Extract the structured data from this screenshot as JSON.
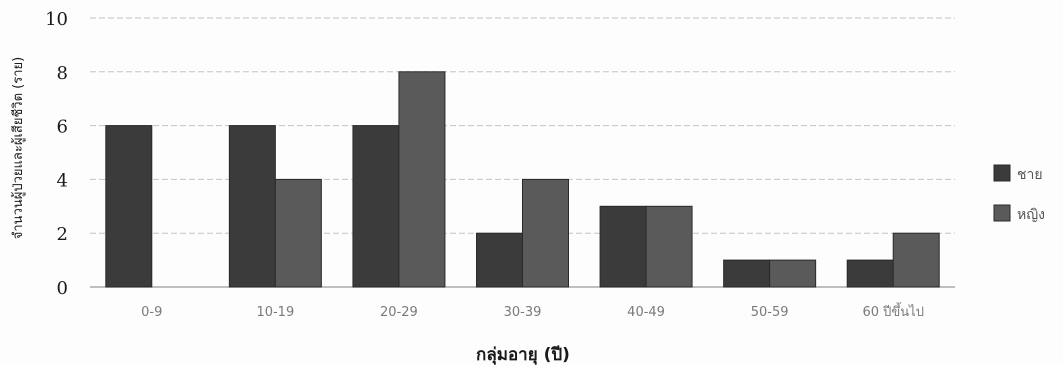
{
  "chart_data": {
    "type": "bar",
    "title": "",
    "xlabel": "กลุ่มอายุ (ปี)",
    "ylabel": "จำนวนผู้ป่วยและผู้เสียชีวิต (ราย)",
    "categories": [
      "0-9",
      "10-19",
      "20-29",
      "30-39",
      "40-49",
      "50-59",
      "60 ปีขึ้นไป"
    ],
    "series": [
      {
        "name": "ชาย",
        "values": [
          6,
          6,
          6,
          2,
          3,
          1,
          1
        ],
        "color": "#3b3b3b"
      },
      {
        "name": "หญิง",
        "values": [
          null,
          4,
          8,
          4,
          3,
          1,
          2
        ],
        "color": "#5a5a5a"
      }
    ],
    "ylim": [
      0,
      10
    ],
    "yticks": [
      0,
      2,
      4,
      6,
      8,
      10
    ],
    "grid": true,
    "legend_position": "right"
  }
}
